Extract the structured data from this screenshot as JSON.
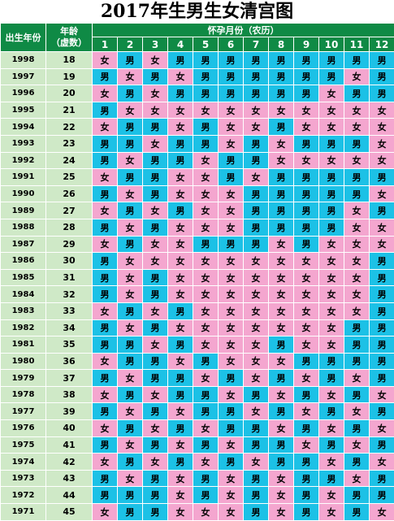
{
  "title": "2017年生男生女清宫图",
  "header": {
    "birth_year": "出生年份",
    "age_line1": "年龄",
    "age_line2": "（虚数）",
    "conception_month": "怀孕月份（农历）",
    "months": [
      "1",
      "2",
      "3",
      "4",
      "5",
      "6",
      "7",
      "8",
      "9",
      "10",
      "11",
      "12"
    ]
  },
  "colors": {
    "boy": "#1cc1e6",
    "girl": "#f4a6cf",
    "header": "#0f8a45",
    "side": "#cfe9c7"
  },
  "rows": [
    {
      "year": "1998",
      "age": "18",
      "cells": [
        "女",
        "男",
        "女",
        "男",
        "男",
        "男",
        "男",
        "男",
        "男",
        "男",
        "男",
        "男"
      ]
    },
    {
      "year": "1997",
      "age": "19",
      "cells": [
        "男",
        "女",
        "男",
        "女",
        "男",
        "男",
        "男",
        "男",
        "男",
        "男",
        "女",
        "男"
      ]
    },
    {
      "year": "1996",
      "age": "20",
      "cells": [
        "女",
        "男",
        "女",
        "男",
        "男",
        "男",
        "男",
        "男",
        "男",
        "女",
        "男",
        "男"
      ]
    },
    {
      "year": "1995",
      "age": "21",
      "cells": [
        "男",
        "女",
        "女",
        "女",
        "女",
        "女",
        "女",
        "女",
        "女",
        "女",
        "女",
        "女"
      ]
    },
    {
      "year": "1994",
      "age": "22",
      "cells": [
        "女",
        "男",
        "男",
        "女",
        "男",
        "女",
        "女",
        "男",
        "女",
        "女",
        "女",
        "女"
      ]
    },
    {
      "year": "1993",
      "age": "23",
      "cells": [
        "男",
        "男",
        "女",
        "男",
        "男",
        "女",
        "男",
        "女",
        "男",
        "男",
        "男",
        "女"
      ]
    },
    {
      "year": "1992",
      "age": "24",
      "cells": [
        "男",
        "女",
        "男",
        "男",
        "女",
        "男",
        "男",
        "女",
        "女",
        "女",
        "女",
        "女"
      ]
    },
    {
      "year": "1991",
      "age": "25",
      "cells": [
        "女",
        "男",
        "男",
        "女",
        "女",
        "男",
        "女",
        "男",
        "男",
        "男",
        "男",
        "男"
      ]
    },
    {
      "year": "1990",
      "age": "26",
      "cells": [
        "男",
        "女",
        "男",
        "女",
        "女",
        "女",
        "男",
        "男",
        "男",
        "男",
        "男",
        "女"
      ]
    },
    {
      "year": "1989",
      "age": "27",
      "cells": [
        "女",
        "男",
        "女",
        "男",
        "女",
        "女",
        "男",
        "男",
        "男",
        "男",
        "女",
        "男"
      ]
    },
    {
      "year": "1988",
      "age": "28",
      "cells": [
        "男",
        "女",
        "男",
        "女",
        "女",
        "女",
        "男",
        "男",
        "男",
        "男",
        "女",
        "女"
      ]
    },
    {
      "year": "1987",
      "age": "29",
      "cells": [
        "女",
        "男",
        "女",
        "女",
        "男",
        "男",
        "男",
        "女",
        "男",
        "女",
        "女",
        "女"
      ]
    },
    {
      "year": "1986",
      "age": "30",
      "cells": [
        "男",
        "女",
        "女",
        "女",
        "女",
        "女",
        "女",
        "女",
        "女",
        "女",
        "女",
        "男"
      ]
    },
    {
      "year": "1985",
      "age": "31",
      "cells": [
        "男",
        "女",
        "男",
        "女",
        "女",
        "女",
        "女",
        "女",
        "女",
        "女",
        "女",
        "男"
      ]
    },
    {
      "year": "1984",
      "age": "32",
      "cells": [
        "男",
        "女",
        "男",
        "女",
        "女",
        "女",
        "女",
        "女",
        "女",
        "女",
        "女",
        "男"
      ]
    },
    {
      "year": "1983",
      "age": "33",
      "cells": [
        "女",
        "男",
        "女",
        "男",
        "女",
        "女",
        "女",
        "女",
        "女",
        "女",
        "女",
        "男"
      ]
    },
    {
      "year": "1982",
      "age": "34",
      "cells": [
        "男",
        "女",
        "男",
        "女",
        "女",
        "女",
        "女",
        "女",
        "女",
        "女",
        "男",
        "男"
      ]
    },
    {
      "year": "1981",
      "age": "35",
      "cells": [
        "男",
        "男",
        "女",
        "男",
        "女",
        "女",
        "女",
        "男",
        "女",
        "女",
        "男",
        "男"
      ]
    },
    {
      "year": "1980",
      "age": "36",
      "cells": [
        "女",
        "男",
        "男",
        "女",
        "男",
        "女",
        "女",
        "女",
        "男",
        "男",
        "男",
        "男"
      ]
    },
    {
      "year": "1979",
      "age": "37",
      "cells": [
        "男",
        "女",
        "男",
        "男",
        "女",
        "男",
        "女",
        "男",
        "女",
        "男",
        "女",
        "男"
      ]
    },
    {
      "year": "1978",
      "age": "38",
      "cells": [
        "女",
        "男",
        "女",
        "男",
        "男",
        "女",
        "男",
        "女",
        "男",
        "女",
        "男",
        "女"
      ]
    },
    {
      "year": "1977",
      "age": "39",
      "cells": [
        "男",
        "女",
        "男",
        "女",
        "男",
        "男",
        "女",
        "男",
        "女",
        "男",
        "女",
        "男"
      ]
    },
    {
      "year": "1976",
      "age": "40",
      "cells": [
        "女",
        "男",
        "女",
        "男",
        "女",
        "男",
        "男",
        "女",
        "男",
        "女",
        "男",
        "女"
      ]
    },
    {
      "year": "1975",
      "age": "41",
      "cells": [
        "男",
        "女",
        "男",
        "女",
        "男",
        "女",
        "男",
        "男",
        "女",
        "男",
        "女",
        "男"
      ]
    },
    {
      "year": "1974",
      "age": "42",
      "cells": [
        "女",
        "男",
        "女",
        "男",
        "女",
        "男",
        "女",
        "男",
        "男",
        "女",
        "男",
        "女"
      ]
    },
    {
      "year": "1973",
      "age": "43",
      "cells": [
        "男",
        "女",
        "男",
        "女",
        "男",
        "女",
        "男",
        "女",
        "男",
        "男",
        "女",
        "男"
      ]
    },
    {
      "year": "1972",
      "age": "44",
      "cells": [
        "男",
        "男",
        "男",
        "女",
        "男",
        "女",
        "男",
        "女",
        "男",
        "女",
        "男",
        "男"
      ]
    },
    {
      "year": "1971",
      "age": "45",
      "cells": [
        "女",
        "男",
        "男",
        "女",
        "女",
        "女",
        "男",
        "女",
        "男",
        "女",
        "男",
        "女"
      ]
    }
  ]
}
